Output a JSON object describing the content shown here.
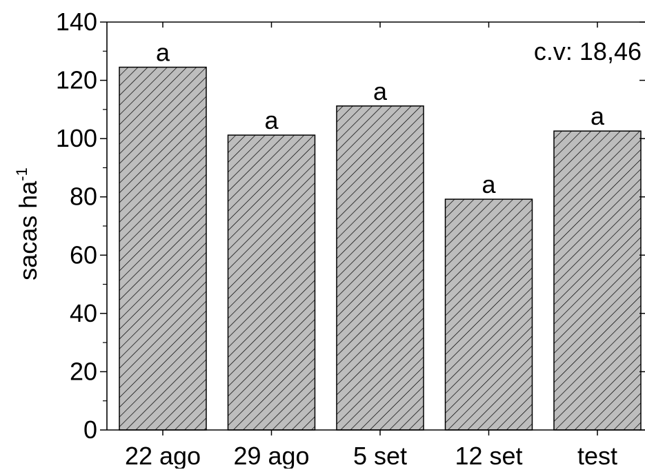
{
  "chart_data": {
    "type": "bar",
    "categories": [
      "22 ago",
      "29 ago",
      "5 set",
      "12 set",
      "test"
    ],
    "values": [
      124.5,
      101.2,
      111.2,
      79.2,
      102.6
    ],
    "significance_letters": [
      "a",
      "a",
      "a",
      "a",
      "a"
    ],
    "ylabel": "sacas ha",
    "ylabel_superscript": "-1",
    "annotation": "c.v: 18,46",
    "ylim": [
      0,
      140
    ],
    "yticks": [
      0,
      20,
      40,
      60,
      80,
      100,
      120,
      140
    ],
    "bar_fill": "#bdbdbd",
    "hatch_color": "#000000",
    "grid": false,
    "legend": "none"
  }
}
